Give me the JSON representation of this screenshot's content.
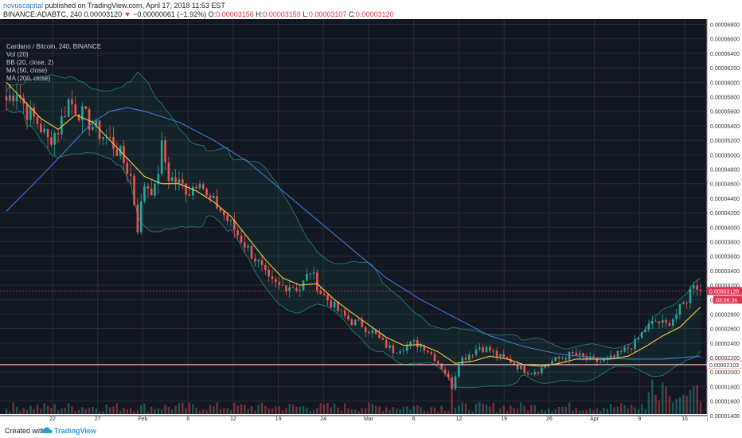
{
  "header": {
    "publisher": "novuscapital",
    "published_text": "published on TradingView.com, April 17, 2018 11:53 EST",
    "symbol": "BINANCE:ADABTC, 240",
    "last_price": "0.00003120",
    "change": "−0.00000061 (−1.92%)",
    "open_label": "O:",
    "open": "0.00003156",
    "high_label": "H:",
    "high": "0.00003159",
    "low_label": "L:",
    "low": "0.00003107",
    "close_label": "C:",
    "close": "0.00003120"
  },
  "legend": {
    "title": "Cardano / Bitcoin, 240, BINANCE",
    "items": [
      "Vol (20)",
      "BB (20, close, 2)",
      "MA (50, close)",
      "MA (200, close)"
    ]
  },
  "price_tags": {
    "current": "0.00003120",
    "countdown": "03:06:36",
    "support": "0.00002103"
  },
  "footer": {
    "created_with": "Created with",
    "brand": "TradingView"
  },
  "colors": {
    "background": "#131722",
    "grid": "#2a2e39",
    "up": "#26a69a",
    "down": "#ef5350",
    "ma50": "#f5d142",
    "ma200": "#3a7dd1",
    "bb": "#1f8a7a",
    "support_line": "#f4b6b6",
    "price_tag": "#e0334f"
  },
  "chart_data": {
    "type": "candlestick",
    "x_tick_labels": [
      "22",
      "27",
      "Feb",
      "6",
      "12",
      "19",
      "24",
      "Mar",
      "6",
      "12",
      "19",
      "26",
      "Apr",
      "9",
      "16"
    ],
    "y_tick_labels": [
      "0.00006800",
      "0.00006600",
      "0.00006400",
      "0.00006200",
      "0.00006000",
      "0.00005800",
      "0.00005600",
      "0.00005400",
      "0.00005200",
      "0.00005000",
      "0.00004800",
      "0.00004600",
      "0.00004400",
      "0.00004200",
      "0.00004000",
      "0.00003800",
      "0.00003600",
      "0.00003400",
      "0.00003200",
      "0.00003000",
      "0.00002800",
      "0.00002600",
      "0.00002400",
      "0.00002200",
      "0.00002000",
      "0.00001800",
      "0.00001600",
      "0.00001400"
    ],
    "ylim": [
      1.42e-05,
      6.85e-05
    ],
    "close_path": [
      [
        0,
        5.75e-05
      ],
      [
        3,
        5.9e-05
      ],
      [
        6,
        5.6e-05
      ],
      [
        9,
        5.45e-05
      ],
      [
        12,
        5.2e-05
      ],
      [
        15,
        5.35e-05
      ],
      [
        18,
        5.75e-05
      ],
      [
        21,
        5.6e-05
      ],
      [
        24,
        5.45e-05
      ],
      [
        27,
        5.3e-05
      ],
      [
        30,
        5.2e-05
      ],
      [
        33,
        5e-05
      ],
      [
        36,
        4.7e-05
      ],
      [
        38,
        4e-05
      ],
      [
        40,
        4.6e-05
      ],
      [
        43,
        4.5e-05
      ],
      [
        45,
        5.1e-05
      ],
      [
        47,
        4.7e-05
      ],
      [
        50,
        4.6e-05
      ],
      [
        53,
        4.5e-05
      ],
      [
        56,
        4.7e-05
      ],
      [
        58,
        4.4e-05
      ],
      [
        61,
        4.3e-05
      ],
      [
        64,
        4.1e-05
      ],
      [
        67,
        3.9e-05
      ],
      [
        70,
        3.7e-05
      ],
      [
        73,
        3.5e-05
      ],
      [
        76,
        3.25e-05
      ],
      [
        79,
        3.18e-05
      ],
      [
        82,
        3.2e-05
      ],
      [
        85,
        3.15e-05
      ],
      [
        88,
        3.4e-05
      ],
      [
        91,
        3.1e-05
      ],
      [
        94,
        2.95e-05
      ],
      [
        97,
        2.8e-05
      ],
      [
        100,
        2.7e-05
      ],
      [
        103,
        2.65e-05
      ],
      [
        106,
        2.55e-05
      ],
      [
        109,
        2.4e-05
      ],
      [
        112,
        2.3e-05
      ],
      [
        115,
        2.35e-05
      ],
      [
        118,
        2.4e-05
      ],
      [
        121,
        2.35e-05
      ],
      [
        124,
        2.2e-05
      ],
      [
        127,
        2e-05
      ],
      [
        129,
        1.8e-05
      ],
      [
        131,
        2.15e-05
      ],
      [
        134,
        2.25e-05
      ],
      [
        137,
        2.35e-05
      ],
      [
        140,
        2.3e-05
      ],
      [
        143,
        2.2e-05
      ],
      [
        146,
        2.15e-05
      ],
      [
        149,
        2.05e-05
      ],
      [
        152,
        2e-05
      ],
      [
        155,
        2.05e-05
      ],
      [
        158,
        2.15e-05
      ],
      [
        161,
        2.2e-05
      ],
      [
        164,
        2.25e-05
      ],
      [
        167,
        2.2e-05
      ],
      [
        170,
        2.15e-05
      ],
      [
        173,
        2.15e-05
      ],
      [
        176,
        2.2e-05
      ],
      [
        179,
        2.3e-05
      ],
      [
        182,
        2.4e-05
      ],
      [
        185,
        2.6e-05
      ],
      [
        188,
        2.7e-05
      ],
      [
        191,
        2.65e-05
      ],
      [
        194,
        2.8e-05
      ],
      [
        197,
        3e-05
      ],
      [
        199,
        3.25e-05
      ],
      [
        201,
        3.12e-05
      ]
    ],
    "ma50": [
      [
        0,
        6e-05
      ],
      [
        5,
        5.75e-05
      ],
      [
        10,
        5.5e-05
      ],
      [
        15,
        5.35e-05
      ],
      [
        20,
        5.55e-05
      ],
      [
        25,
        5.45e-05
      ],
      [
        30,
        5.2e-05
      ],
      [
        35,
        4.95e-05
      ],
      [
        40,
        4.7e-05
      ],
      [
        45,
        4.6e-05
      ],
      [
        50,
        4.6e-05
      ],
      [
        55,
        4.5e-05
      ],
      [
        60,
        4.35e-05
      ],
      [
        65,
        4.15e-05
      ],
      [
        70,
        3.85e-05
      ],
      [
        75,
        3.55e-05
      ],
      [
        80,
        3.3e-05
      ],
      [
        85,
        3.2e-05
      ],
      [
        90,
        3.22e-05
      ],
      [
        95,
        3e-05
      ],
      [
        100,
        2.82e-05
      ],
      [
        105,
        2.65e-05
      ],
      [
        110,
        2.48e-05
      ],
      [
        115,
        2.37e-05
      ],
      [
        120,
        2.38e-05
      ],
      [
        125,
        2.28e-05
      ],
      [
        130,
        2.12e-05
      ],
      [
        135,
        2.15e-05
      ],
      [
        140,
        2.22e-05
      ],
      [
        145,
        2.18e-05
      ],
      [
        150,
        2.1e-05
      ],
      [
        155,
        2.08e-05
      ],
      [
        160,
        2.12e-05
      ],
      [
        165,
        2.18e-05
      ],
      [
        170,
        2.18e-05
      ],
      [
        175,
        2.18e-05
      ],
      [
        180,
        2.22e-05
      ],
      [
        185,
        2.35e-05
      ],
      [
        190,
        2.5e-05
      ],
      [
        195,
        2.62e-05
      ],
      [
        201,
        2.9e-05
      ]
    ],
    "ma200": [
      [
        0,
        4.22e-05
      ],
      [
        10,
        4.7e-05
      ],
      [
        20,
        5.2e-05
      ],
      [
        25,
        5.45e-05
      ],
      [
        30,
        5.6e-05
      ],
      [
        35,
        5.65e-05
      ],
      [
        40,
        5.6e-05
      ],
      [
        50,
        5.45e-05
      ],
      [
        60,
        5.2e-05
      ],
      [
        70,
        4.9e-05
      ],
      [
        80,
        4.5e-05
      ],
      [
        90,
        4.1e-05
      ],
      [
        100,
        3.7e-05
      ],
      [
        110,
        3.3e-05
      ],
      [
        120,
        3e-05
      ],
      [
        130,
        2.75e-05
      ],
      [
        140,
        2.5e-05
      ],
      [
        150,
        2.35e-05
      ],
      [
        160,
        2.25e-05
      ],
      [
        170,
        2.2e-05
      ],
      [
        180,
        2.18e-05
      ],
      [
        190,
        2.18e-05
      ],
      [
        201,
        2.22e-05
      ]
    ],
    "support_level": 2.103e-05,
    "current_level": 3.12e-05
  }
}
